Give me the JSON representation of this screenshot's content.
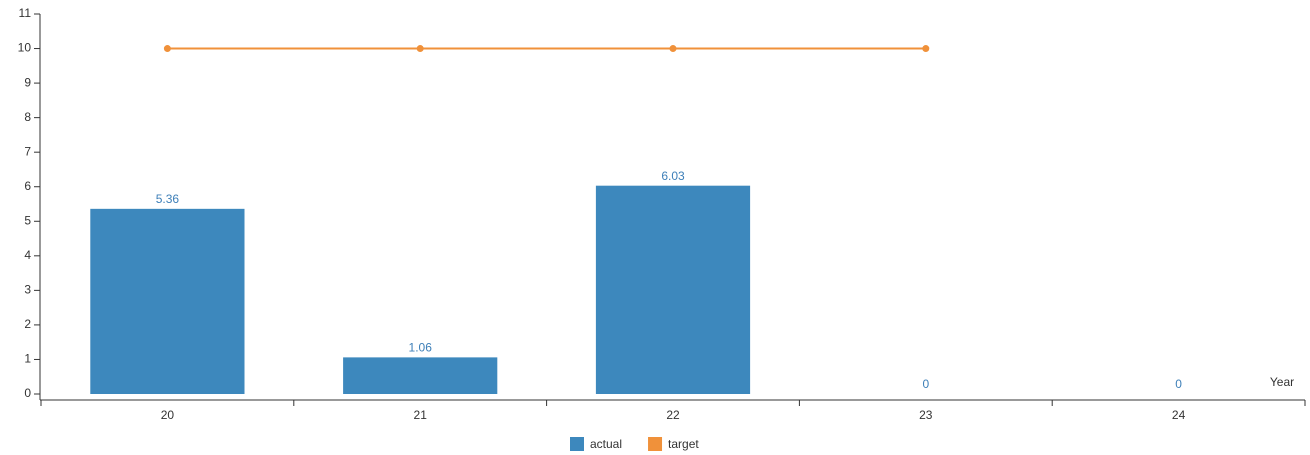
{
  "chart_data": {
    "type": "bar",
    "x_label": "Year",
    "categories": [
      "20",
      "21",
      "22",
      "23",
      "24"
    ],
    "series": [
      {
        "name": "actual",
        "type": "bar",
        "color": "#3d88bd",
        "values": [
          5.36,
          1.06,
          6.03,
          0,
          0
        ]
      },
      {
        "name": "target",
        "type": "line",
        "color": "#f0913a",
        "values": [
          10,
          10,
          10,
          10,
          null
        ]
      }
    ],
    "ylim": [
      0,
      11
    ],
    "yticks": [
      0,
      1,
      2,
      3,
      4,
      5,
      6,
      7,
      8,
      9,
      10,
      11
    ]
  }
}
